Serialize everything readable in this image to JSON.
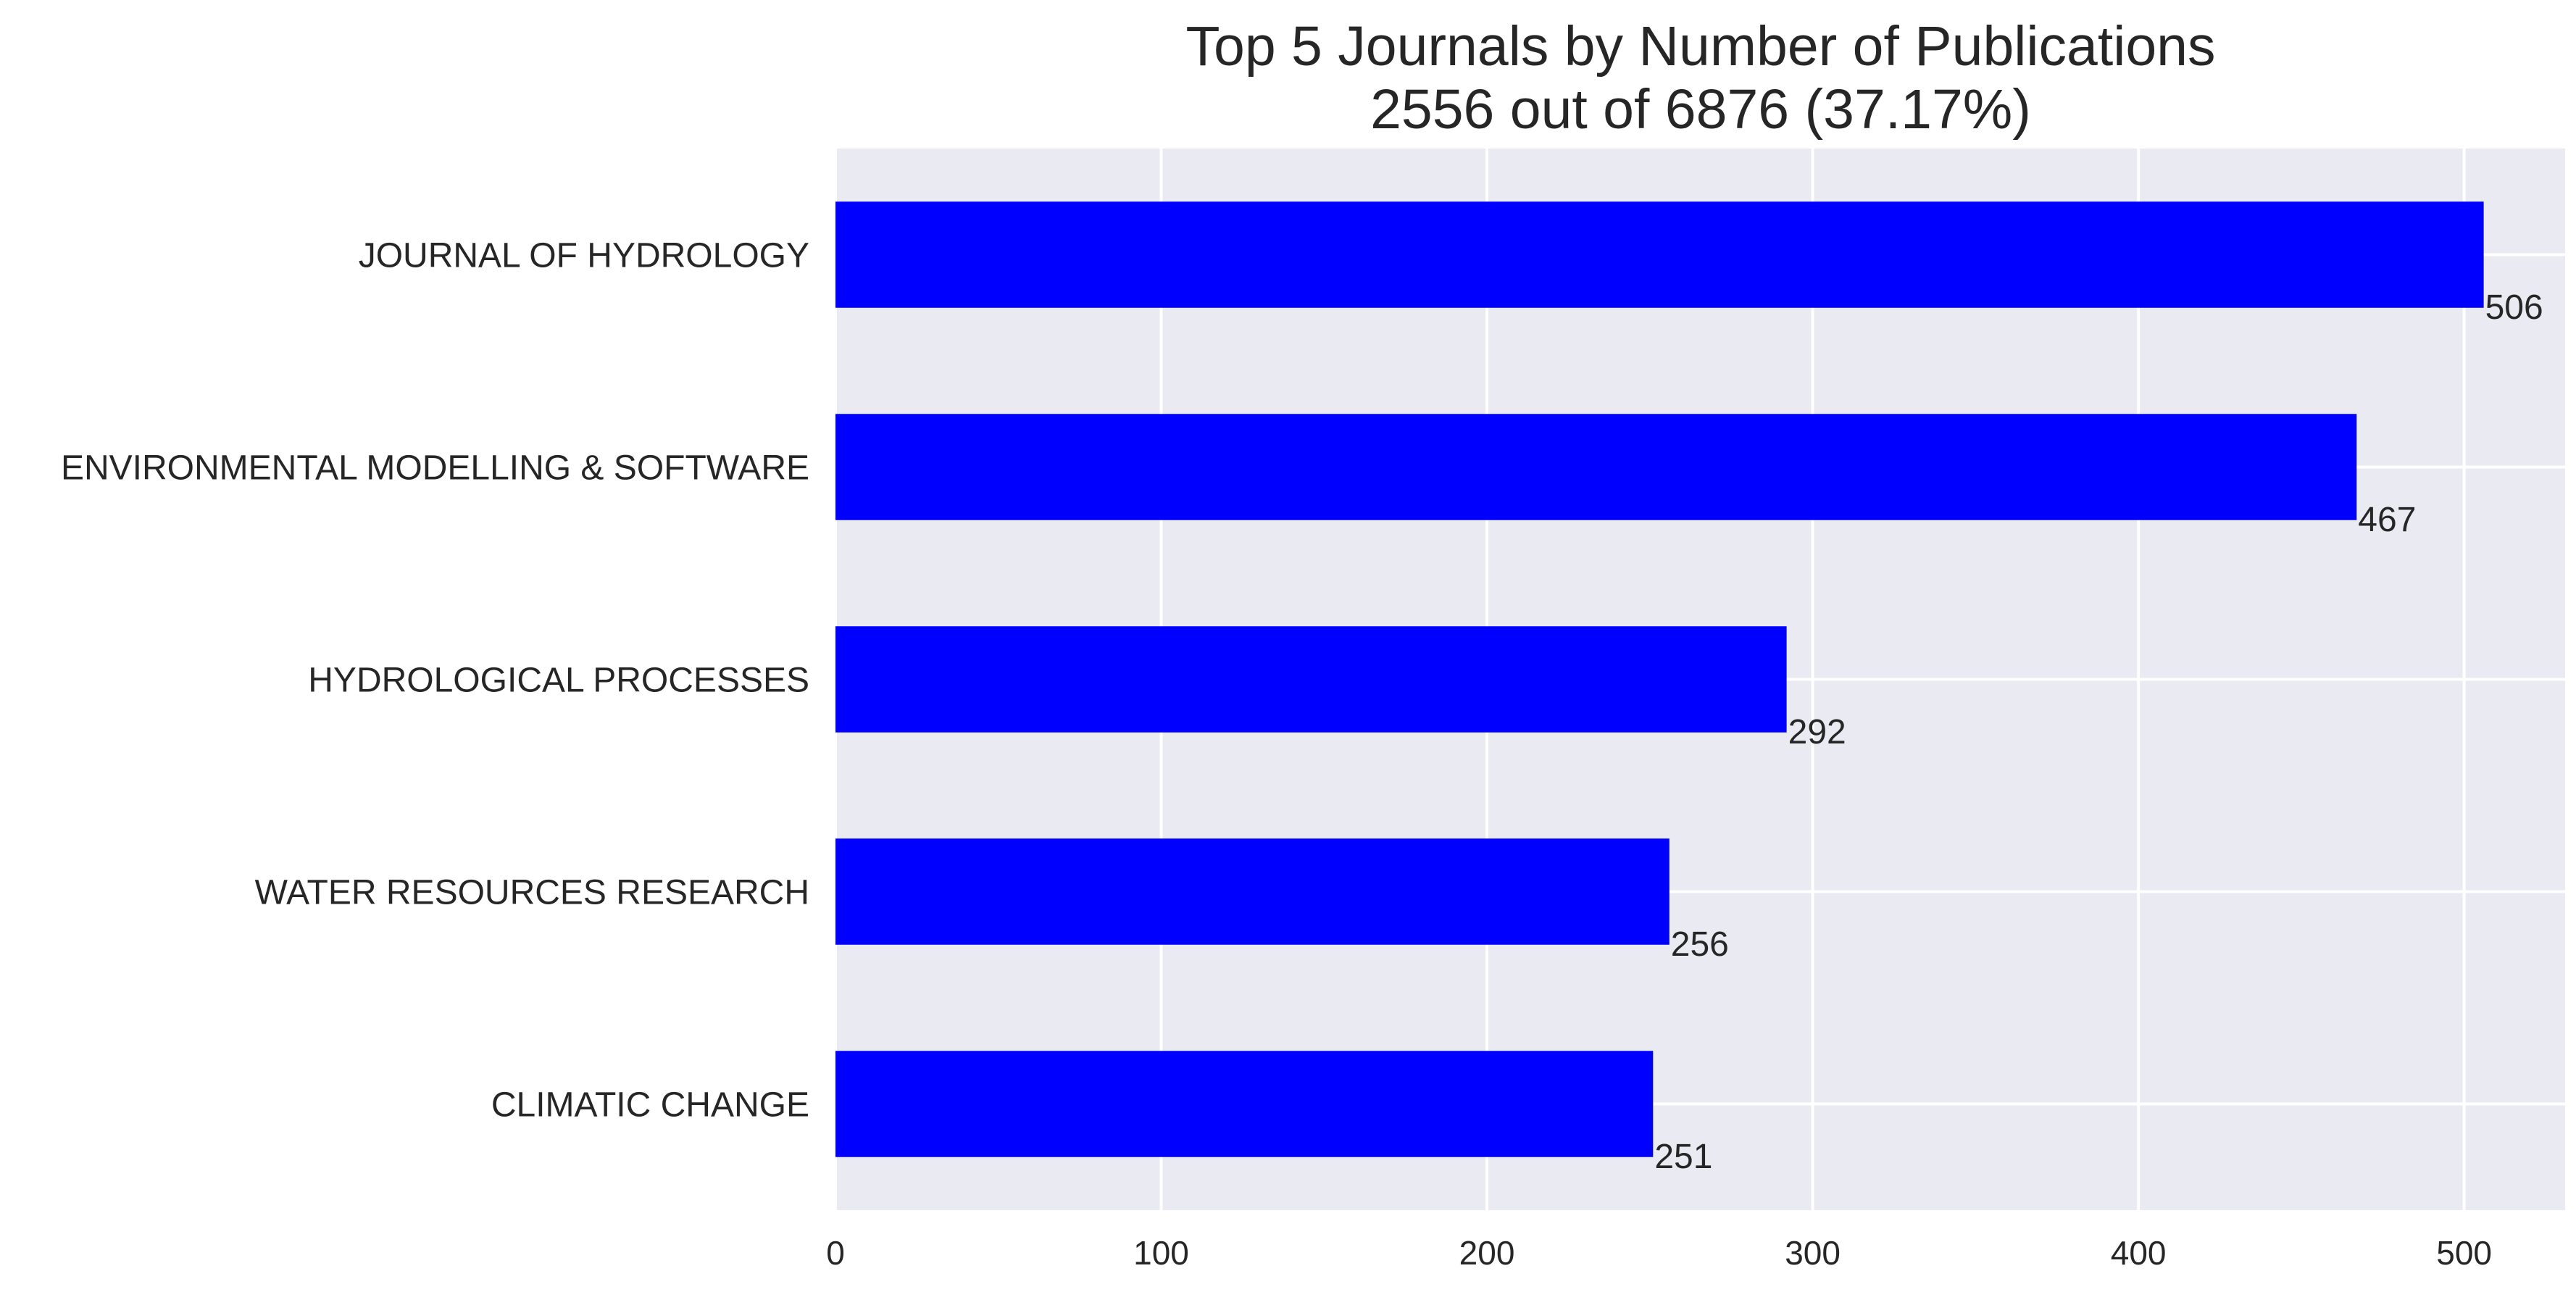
{
  "chart_data": {
    "type": "bar",
    "orientation": "horizontal",
    "title_lines": [
      "Top 5 Journals by Number of Publications",
      "2556 out of 6876 (37.17%)"
    ],
    "xlabel": "",
    "ylabel": "",
    "categories": [
      "JOURNAL OF HYDROLOGY",
      "ENVIRONMENTAL MODELLING & SOFTWARE",
      "HYDROLOGICAL PROCESSES",
      "WATER RESOURCES RESEARCH",
      "CLIMATIC CHANGE"
    ],
    "values": [
      506,
      467,
      292,
      256,
      251
    ],
    "value_labels": [
      "506",
      "467",
      "292",
      "256",
      "251"
    ],
    "xlim": [
      0,
      531
    ],
    "xticks": [
      0,
      100,
      200,
      300,
      400,
      500
    ],
    "xtick_labels": [
      "0",
      "100",
      "200",
      "300",
      "400",
      "500"
    ],
    "grid": true,
    "bar_color": "#0000ff",
    "plot_background": "#eaeaf2",
    "grid_color": "#ffffff"
  }
}
